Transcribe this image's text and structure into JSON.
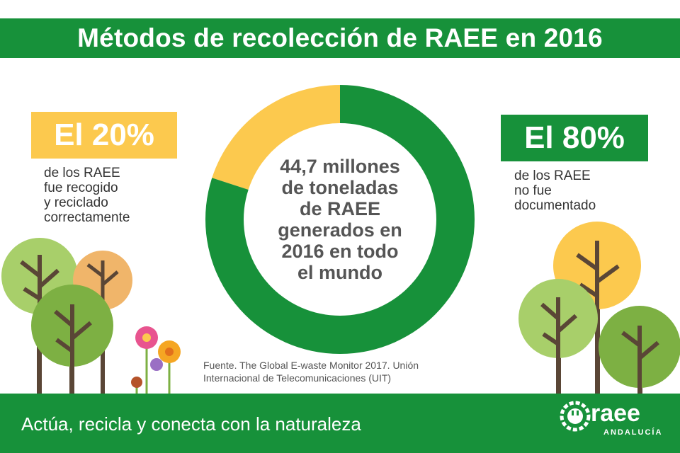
{
  "title": "Métodos de recolección de RAEE en 2016",
  "left_stat": {
    "value_text": "El 20%",
    "description_lines": [
      "de los RAEE",
      "fue recogido",
      "y reciclado",
      "correctamente"
    ]
  },
  "right_stat": {
    "value_text": "El 80%",
    "description_lines": [
      "de los RAEE",
      "no fue",
      "documentado"
    ]
  },
  "center_text_lines": [
    "44,7 millones",
    "de toneladas",
    "de RAEE",
    "generados en",
    "2016 en todo",
    "el mundo"
  ],
  "source_lines": [
    "Fuente. The Global E-waste Monitor 2017. Unión",
    "Internacional de Telecomunicaciones (UIT)"
  ],
  "slogan": "Actúa, recicla y conecta con la naturaleza",
  "logo": {
    "word": "raee",
    "sub": "ANDALUCÍA"
  },
  "colors": {
    "green": "#17913a",
    "yellow": "#fcc94e",
    "light_green": "#a8cf6a",
    "orange": "#f0b56a",
    "olive_green": "#7db043",
    "trunk": "#5a4636"
  },
  "chart_data": {
    "type": "pie",
    "donut": true,
    "categories": [
      "fue recogido y reciclado correctamente",
      "no fue documentado"
    ],
    "values": [
      20,
      80
    ],
    "colors": [
      "#fcc94e",
      "#17913a"
    ]
  }
}
